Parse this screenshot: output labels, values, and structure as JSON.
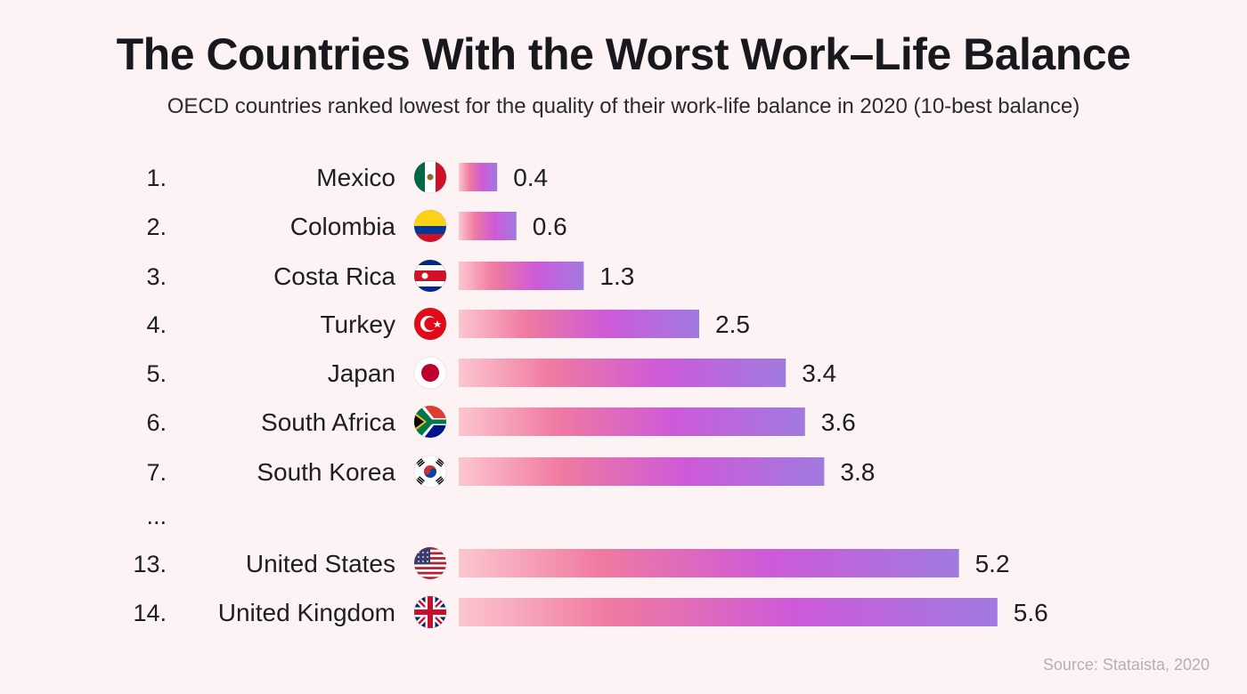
{
  "title": "The Countries With the Worst Work–Life Balance",
  "subtitle": "OECD countries ranked lowest for the quality of their work-life balance in 2020 (10-best balance)",
  "source": "Source: Stataista, 2020",
  "colors": {
    "background": "#fdf3f5",
    "bar_gradient": [
      "#fcc6cf",
      "#f07aa0",
      "#cd5ad8",
      "#a07ade"
    ]
  },
  "chart_data": {
    "type": "bar",
    "orientation": "horizontal",
    "title": "The Countries With the Worst Work–Life Balance",
    "subtitle": "OECD countries ranked lowest for the quality of their work-life balance in 2020 (10-best balance)",
    "xlabel": "",
    "ylabel": "",
    "xlim": [
      0,
      10
    ],
    "grid": false,
    "ellipsis_after_rank": 7,
    "ellipsis_text": "...",
    "rows": [
      {
        "rank": "1.",
        "country": "Mexico",
        "value": 0.4,
        "label": "0.4",
        "flag": "mexico-flag-icon"
      },
      {
        "rank": "2.",
        "country": "Colombia",
        "value": 0.6,
        "label": "0.6",
        "flag": "colombia-flag-icon"
      },
      {
        "rank": "3.",
        "country": "Costa Rica",
        "value": 1.3,
        "label": "1.3",
        "flag": "costa-rica-flag-icon"
      },
      {
        "rank": "4.",
        "country": "Turkey",
        "value": 2.5,
        "label": "2.5",
        "flag": "turkey-flag-icon"
      },
      {
        "rank": "5.",
        "country": "Japan",
        "value": 3.4,
        "label": "3.4",
        "flag": "japan-flag-icon"
      },
      {
        "rank": "6.",
        "country": "South Africa",
        "value": 3.6,
        "label": "3.6",
        "flag": "south-africa-flag-icon"
      },
      {
        "rank": "7.",
        "country": "South Korea",
        "value": 3.8,
        "label": "3.8",
        "flag": "south-korea-flag-icon"
      },
      {
        "rank": "13.",
        "country": "United States",
        "value": 5.2,
        "label": "5.2",
        "flag": "united-states-flag-icon"
      },
      {
        "rank": "14.",
        "country": "United Kingdom",
        "value": 5.6,
        "label": "5.6",
        "flag": "united-kingdom-flag-icon"
      }
    ]
  }
}
